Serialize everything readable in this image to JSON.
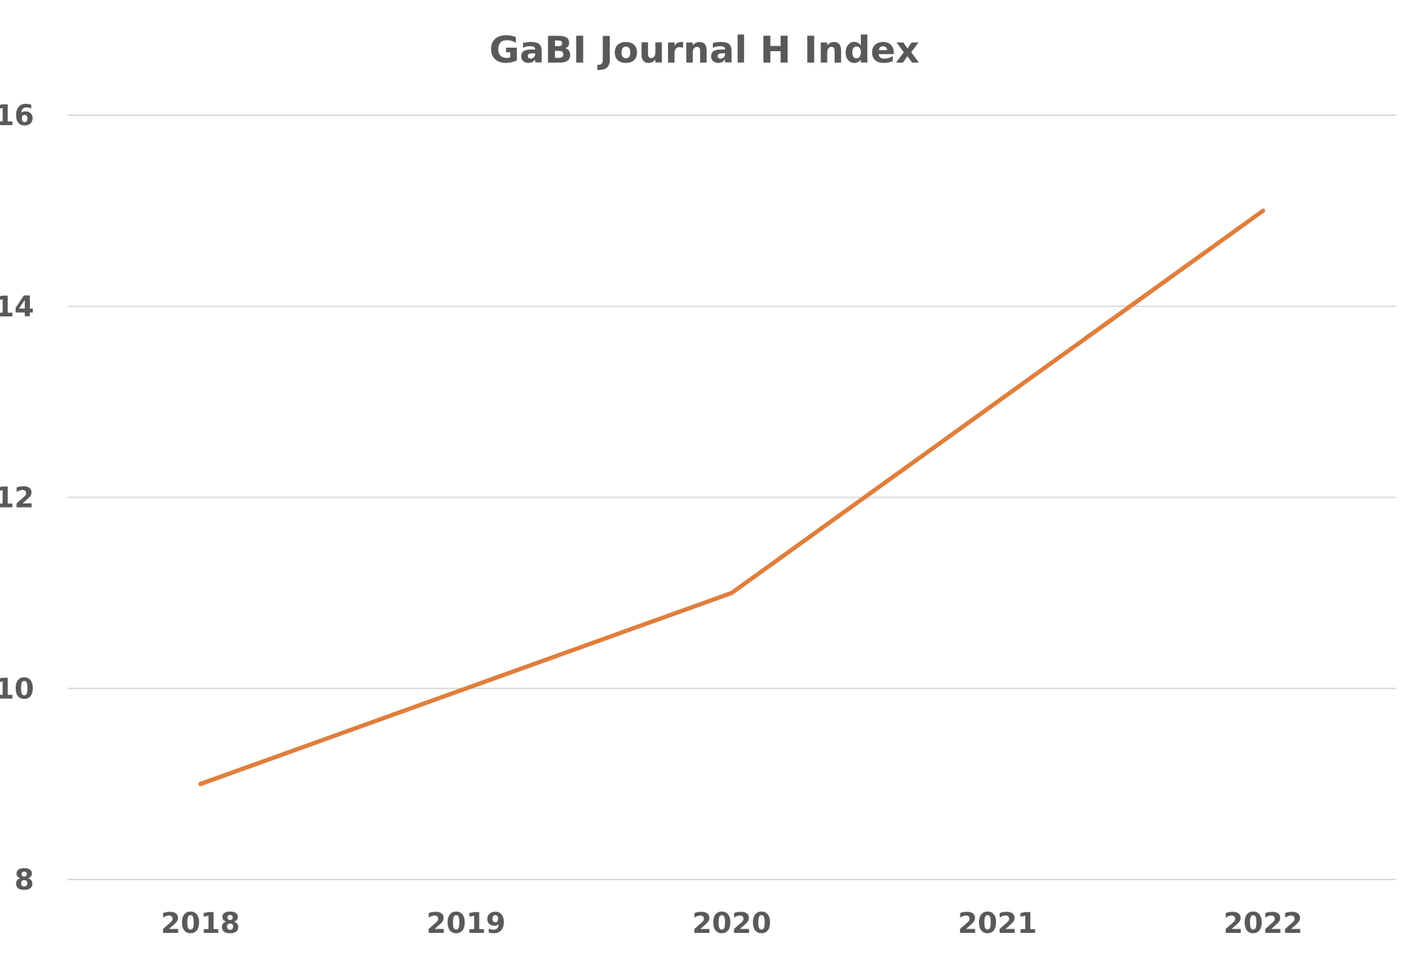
{
  "chart_data": {
    "type": "line",
    "title": "GaBI Journal H Index",
    "xlabel": "",
    "ylabel": "",
    "categories": [
      "2018",
      "2019",
      "2020",
      "2021",
      "2022"
    ],
    "series": [
      {
        "values": [
          9,
          10,
          11,
          13,
          15
        ],
        "color": "#E07E3C"
      }
    ],
    "ylim": [
      8,
      16
    ],
    "yticks": [
      8,
      10,
      12,
      14,
      16
    ],
    "grid": true,
    "legend": "none"
  }
}
